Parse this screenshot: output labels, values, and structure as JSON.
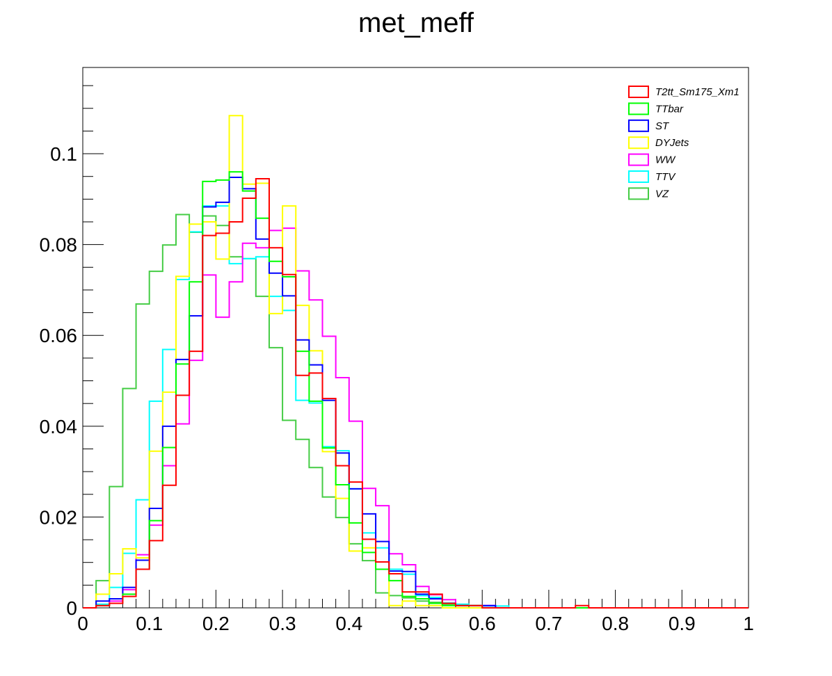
{
  "chart_data": {
    "type": "histogram",
    "title": "met_meff",
    "xlabel": "",
    "ylabel": "",
    "xlim": [
      0,
      1
    ],
    "ylim": [
      0,
      0.119
    ],
    "x_ticks": [
      "0",
      "0.1",
      "0.2",
      "0.3",
      "0.4",
      "0.5",
      "0.6",
      "0.7",
      "0.8",
      "0.9",
      "1"
    ],
    "y_ticks": [
      "0",
      "0.02",
      "0.04",
      "0.06",
      "0.08",
      "0.1"
    ],
    "grid": false,
    "legend_position": "top-right",
    "bin_edges": [
      0,
      0.02,
      0.04,
      0.06,
      0.08,
      0.1,
      0.12,
      0.14,
      0.16,
      0.18,
      0.2,
      0.22,
      0.24,
      0.26,
      0.28,
      0.3,
      0.32,
      0.34,
      0.36,
      0.38,
      0.4,
      0.42,
      0.44,
      0.46,
      0.48,
      0.5,
      0.52,
      0.54,
      0.56,
      0.58,
      0.6,
      0.62,
      0.64,
      0.66,
      0.68,
      0.7,
      0.72,
      0.74,
      0.76,
      0.78,
      0.8,
      0.82,
      0.84,
      0.86,
      0.88,
      0.9,
      0.92,
      0.94,
      0.96,
      0.98,
      1.0
    ],
    "series": [
      {
        "name": "T2tt_Sm175_Xm1",
        "color": "#ff0000",
        "values": [
          0,
          0.0005,
          0.001,
          0.0025,
          0.0085,
          0.0148,
          0.027,
          0.0468,
          0.0565,
          0.082,
          0.0825,
          0.085,
          0.0902,
          0.0945,
          0.0793,
          0.0734,
          0.0512,
          0.0517,
          0.0461,
          0.0313,
          0.0277,
          0.0151,
          0.0101,
          0.0075,
          0.0035,
          0.0035,
          0.003,
          0.001,
          0.0005,
          0.0005,
          0,
          0,
          0,
          0,
          0,
          0,
          0,
          0.0005,
          0,
          0,
          0,
          0,
          0,
          0,
          0,
          0,
          0,
          0,
          0,
          0
        ]
      },
      {
        "name": "TTbar",
        "color": "#00ff00",
        "values": [
          0,
          0.0005,
          0.001,
          0.003,
          0.0085,
          0.0192,
          0.0353,
          0.0537,
          0.0718,
          0.0939,
          0.0942,
          0.096,
          0.0918,
          0.0858,
          0.0763,
          0.0729,
          0.0565,
          0.0455,
          0.0352,
          0.0271,
          0.0187,
          0.0122,
          0.0085,
          0.006,
          0.0025,
          0.002,
          0.001,
          0.0005,
          0.0005,
          0.0005,
          0,
          0,
          0,
          0,
          0,
          0,
          0,
          0,
          0,
          0,
          0,
          0,
          0,
          0,
          0,
          0,
          0,
          0,
          0,
          0
        ]
      },
      {
        "name": "ST",
        "color": "#0000ff",
        "values": [
          0,
          0.0015,
          0.002,
          0.0045,
          0.0105,
          0.0219,
          0.04,
          0.0547,
          0.0643,
          0.0883,
          0.0893,
          0.0948,
          0.0923,
          0.0812,
          0.0737,
          0.0687,
          0.059,
          0.0535,
          0.0457,
          0.0341,
          0.0262,
          0.0207,
          0.0146,
          0.0081,
          0.008,
          0.003,
          0.002,
          0.001,
          0.0005,
          0.0005,
          0.0005,
          0,
          0,
          0,
          0,
          0,
          0,
          0,
          0,
          0,
          0,
          0,
          0,
          0,
          0,
          0,
          0,
          0,
          0,
          0
        ]
      },
      {
        "name": "DYJets",
        "color": "#ffff00",
        "values": [
          0,
          0.003,
          0.0075,
          0.013,
          0.011,
          0.0345,
          0.0475,
          0.073,
          0.0845,
          0.085,
          0.0768,
          0.1084,
          0.0933,
          0.0935,
          0.0648,
          0.0885,
          0.0666,
          0.0566,
          0.0344,
          0.0241,
          0.0125,
          0.0132,
          0.0101,
          0.0005,
          0.0015,
          0.0005,
          0.0005,
          0,
          0,
          0,
          0,
          0,
          0,
          0,
          0,
          0,
          0,
          0,
          0,
          0,
          0,
          0,
          0,
          0,
          0,
          0,
          0,
          0,
          0,
          0
        ]
      },
      {
        "name": "WW",
        "color": "#ff00ff",
        "values": [
          0,
          0.0005,
          0.0015,
          0.004,
          0.0117,
          0.0182,
          0.0313,
          0.0405,
          0.0545,
          0.0733,
          0.064,
          0.0718,
          0.0803,
          0.0793,
          0.0831,
          0.0836,
          0.0742,
          0.0678,
          0.0598,
          0.0507,
          0.0411,
          0.0263,
          0.0225,
          0.0119,
          0.0095,
          0.0047,
          0.0029,
          0.0018,
          0.0005,
          0.0005,
          0.0005,
          0,
          0,
          0,
          0,
          0,
          0,
          0,
          0,
          0,
          0,
          0,
          0,
          0,
          0,
          0,
          0,
          0,
          0,
          0
        ]
      },
      {
        "name": "TTV",
        "color": "#00ffff",
        "values": [
          0,
          0.0008,
          0.0045,
          0.012,
          0.0238,
          0.0455,
          0.0569,
          0.0723,
          0.0828,
          0.0885,
          0.0885,
          0.0758,
          0.0769,
          0.0773,
          0.0686,
          0.0655,
          0.0457,
          0.0451,
          0.0355,
          0.0346,
          0.0262,
          0.0165,
          0.0132,
          0.0085,
          0.0074,
          0.0027,
          0.0023,
          0.0011,
          0.0008,
          0.0005,
          0.0004,
          0.0004,
          0,
          0,
          0,
          0,
          0,
          0,
          0,
          0,
          0,
          0,
          0,
          0,
          0,
          0,
          0,
          0,
          0,
          0
        ]
      },
      {
        "name": "VZ",
        "color": "#44cc44",
        "values": [
          0,
          0.006,
          0.0267,
          0.0483,
          0.0669,
          0.0741,
          0.0799,
          0.0866,
          0.0827,
          0.0863,
          0.0842,
          0.0773,
          0.0769,
          0.0686,
          0.0573,
          0.0413,
          0.0371,
          0.0309,
          0.0244,
          0.0199,
          0.0141,
          0.0104,
          0.0033,
          0.0027,
          0.0022,
          0.0015,
          0.0012,
          0.0008,
          0.0005,
          0,
          0,
          0,
          0,
          0,
          0,
          0,
          0,
          0,
          0,
          0,
          0,
          0,
          0,
          0,
          0,
          0,
          0,
          0,
          0,
          0
        ]
      }
    ]
  }
}
